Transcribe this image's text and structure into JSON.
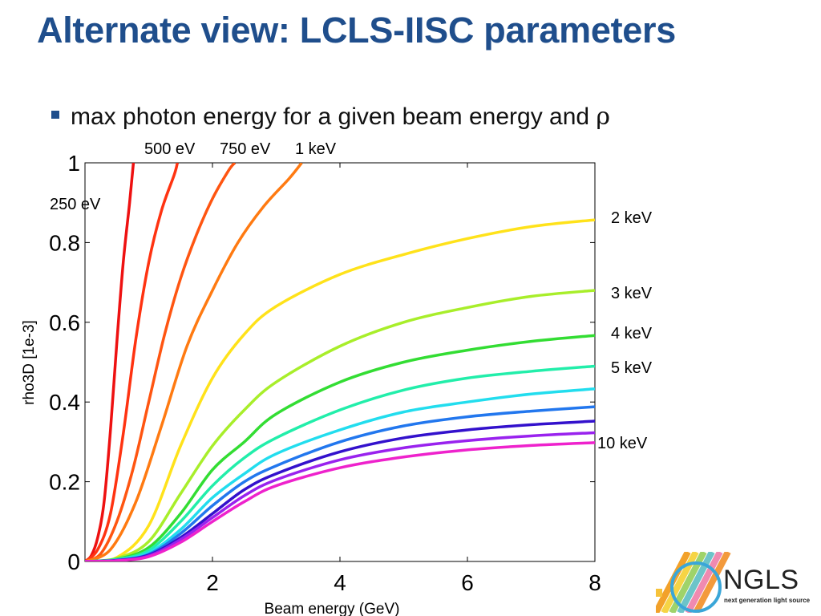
{
  "title": "Alternate view:  LCLS-IISC parameters",
  "bullet": {
    "text": "max photon energy for a given beam energy and ",
    "symbol": "ρ"
  },
  "logo": {
    "name": "NGLS",
    "subtitle": "next generation light source"
  },
  "chart_data": {
    "type": "line",
    "xlabel": "Beam energy (GeV)",
    "ylabel": "rho3D [1e-3]",
    "xlim": [
      0,
      8
    ],
    "ylim": [
      0,
      1
    ],
    "xticks": [
      2,
      4,
      6,
      8
    ],
    "yticks": [
      0,
      0.2,
      0.4,
      0.6,
      0.8,
      1
    ],
    "ytick_labels": [
      "0",
      "0.2",
      "0.4",
      "0.6",
      "0.8",
      "1"
    ],
    "grid": false,
    "series": [
      {
        "name": "250 eV",
        "color": "#ee1111",
        "points": [
          [
            0,
            0
          ],
          [
            0.1,
            0.015
          ],
          [
            0.2,
            0.06
          ],
          [
            0.3,
            0.15
          ],
          [
            0.4,
            0.33
          ],
          [
            0.5,
            0.55
          ],
          [
            0.6,
            0.75
          ],
          [
            0.7,
            0.9
          ],
          [
            0.76,
            1.0
          ]
        ]
      },
      {
        "name": "500 eV",
        "color": "#ff3311",
        "points": [
          [
            0,
            0
          ],
          [
            0.2,
            0.03
          ],
          [
            0.4,
            0.12
          ],
          [
            0.6,
            0.32
          ],
          [
            0.8,
            0.56
          ],
          [
            1.0,
            0.75
          ],
          [
            1.2,
            0.88
          ],
          [
            1.4,
            0.97
          ],
          [
            1.45,
            1.0
          ]
        ]
      },
      {
        "name": "750 eV",
        "color": "#ff5511",
        "points": [
          [
            0,
            0
          ],
          [
            0.25,
            0.02
          ],
          [
            0.5,
            0.1
          ],
          [
            0.75,
            0.23
          ],
          [
            1.0,
            0.4
          ],
          [
            1.25,
            0.57
          ],
          [
            1.5,
            0.71
          ],
          [
            1.75,
            0.82
          ],
          [
            2.0,
            0.91
          ],
          [
            2.25,
            0.98
          ],
          [
            2.35,
            1.0
          ]
        ]
      },
      {
        "name": "1 keV",
        "color": "#ff7a11",
        "points": [
          [
            0,
            0
          ],
          [
            0.4,
            0.03
          ],
          [
            0.8,
            0.15
          ],
          [
            1.2,
            0.34
          ],
          [
            1.6,
            0.54
          ],
          [
            2.0,
            0.68
          ],
          [
            2.4,
            0.8
          ],
          [
            2.8,
            0.89
          ],
          [
            3.2,
            0.96
          ],
          [
            3.4,
            1.0
          ]
        ]
      },
      {
        "name": "2 keV",
        "color": "#ffe21a",
        "points": [
          [
            0,
            0
          ],
          [
            0.5,
            0.01
          ],
          [
            1.0,
            0.09
          ],
          [
            1.5,
            0.29
          ],
          [
            2.0,
            0.46
          ],
          [
            2.5,
            0.57
          ],
          [
            3.0,
            0.64
          ],
          [
            4.0,
            0.72
          ],
          [
            5.0,
            0.77
          ],
          [
            6.0,
            0.81
          ],
          [
            7.0,
            0.84
          ],
          [
            8.0,
            0.857
          ]
        ]
      },
      {
        "name": "3 keV",
        "color": "#a8ee2a",
        "points": [
          [
            0,
            0
          ],
          [
            0.5,
            0.008
          ],
          [
            1.0,
            0.05
          ],
          [
            1.5,
            0.17
          ],
          [
            2.0,
            0.29
          ],
          [
            2.5,
            0.38
          ],
          [
            3.0,
            0.45
          ],
          [
            4.0,
            0.54
          ],
          [
            5.0,
            0.6
          ],
          [
            6.0,
            0.637
          ],
          [
            7.0,
            0.665
          ],
          [
            8.0,
            0.68
          ]
        ]
      },
      {
        "name": "4 keV",
        "color": "#33dd33",
        "points": [
          [
            0,
            0
          ],
          [
            0.5,
            0.006
          ],
          [
            1.0,
            0.035
          ],
          [
            1.5,
            0.12
          ],
          [
            2.0,
            0.23
          ],
          [
            2.5,
            0.3
          ],
          [
            3.0,
            0.37
          ],
          [
            4.0,
            0.45
          ],
          [
            5.0,
            0.5
          ],
          [
            6.0,
            0.53
          ],
          [
            7.0,
            0.552
          ],
          [
            8.0,
            0.567
          ]
        ]
      },
      {
        "name": "5 keV",
        "color": "#22eeaa",
        "points": [
          [
            0,
            0
          ],
          [
            0.5,
            0.005
          ],
          [
            1.0,
            0.028
          ],
          [
            1.5,
            0.1
          ],
          [
            2.0,
            0.19
          ],
          [
            2.5,
            0.26
          ],
          [
            3.0,
            0.31
          ],
          [
            4.0,
            0.38
          ],
          [
            5.0,
            0.43
          ],
          [
            6.0,
            0.46
          ],
          [
            7.0,
            0.477
          ],
          [
            8.0,
            0.49
          ]
        ]
      },
      {
        "name": "",
        "color": "#22ddee",
        "points": [
          [
            0,
            0
          ],
          [
            0.5,
            0.004
          ],
          [
            1.0,
            0.022
          ],
          [
            1.5,
            0.08
          ],
          [
            2.0,
            0.16
          ],
          [
            2.5,
            0.22
          ],
          [
            3.0,
            0.27
          ],
          [
            4.0,
            0.33
          ],
          [
            5.0,
            0.375
          ],
          [
            6.0,
            0.4
          ],
          [
            7.0,
            0.42
          ],
          [
            8.0,
            0.433
          ]
        ]
      },
      {
        "name": "",
        "color": "#2277ee",
        "points": [
          [
            0,
            0
          ],
          [
            0.5,
            0.003
          ],
          [
            1.0,
            0.018
          ],
          [
            1.5,
            0.07
          ],
          [
            2.0,
            0.14
          ],
          [
            2.5,
            0.2
          ],
          [
            3.0,
            0.24
          ],
          [
            4.0,
            0.3
          ],
          [
            5.0,
            0.34
          ],
          [
            6.0,
            0.363
          ],
          [
            7.0,
            0.377
          ],
          [
            8.0,
            0.388
          ]
        ]
      },
      {
        "name": "",
        "color": "#3311cc",
        "points": [
          [
            0,
            0
          ],
          [
            0.5,
            0.003
          ],
          [
            1.0,
            0.016
          ],
          [
            1.5,
            0.06
          ],
          [
            2.0,
            0.12
          ],
          [
            2.5,
            0.18
          ],
          [
            3.0,
            0.22
          ],
          [
            4.0,
            0.275
          ],
          [
            5.0,
            0.31
          ],
          [
            6.0,
            0.33
          ],
          [
            7.0,
            0.343
          ],
          [
            8.0,
            0.352
          ]
        ]
      },
      {
        "name": "",
        "color": "#9922ee",
        "points": [
          [
            0,
            0
          ],
          [
            0.5,
            0.002
          ],
          [
            1.0,
            0.014
          ],
          [
            1.5,
            0.055
          ],
          [
            2.0,
            0.11
          ],
          [
            2.5,
            0.165
          ],
          [
            3.0,
            0.205
          ],
          [
            4.0,
            0.255
          ],
          [
            5.0,
            0.285
          ],
          [
            6.0,
            0.303
          ],
          [
            7.0,
            0.315
          ],
          [
            8.0,
            0.323
          ]
        ]
      },
      {
        "name": "10 keV",
        "color": "#ee22cc",
        "points": [
          [
            0,
            0
          ],
          [
            0.5,
            0.002
          ],
          [
            1.0,
            0.012
          ],
          [
            1.5,
            0.048
          ],
          [
            2.0,
            0.1
          ],
          [
            2.5,
            0.15
          ],
          [
            3.0,
            0.19
          ],
          [
            4.0,
            0.235
          ],
          [
            5.0,
            0.262
          ],
          [
            6.0,
            0.28
          ],
          [
            7.0,
            0.291
          ],
          [
            8.0,
            0.298
          ]
        ]
      }
    ]
  }
}
